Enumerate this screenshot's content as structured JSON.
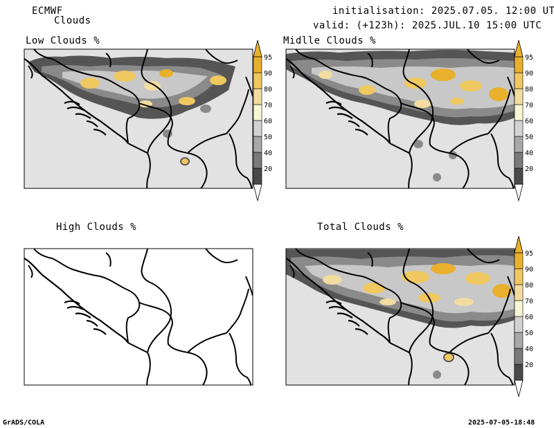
{
  "header": {
    "model": "ECMWF",
    "product": "Clouds",
    "init": "initialisation: 2025.07.05. 12:00 UTC",
    "valid": "valid: (+123h): 2025.JUL.10 15:00 UTC"
  },
  "panels": [
    {
      "title": "Low Clouds %",
      "cloud_field": "low"
    },
    {
      "title": "Midlle Clouds %",
      "cloud_field": "middle"
    },
    {
      "title": "High Clouds %",
      "cloud_field": "none"
    },
    {
      "title": "Total Clouds %",
      "cloud_field": "total"
    }
  ],
  "colorbar": {
    "levels": [
      "20",
      "40",
      "50",
      "60",
      "70",
      "80",
      "90",
      "95"
    ],
    "colors": [
      "#4a4a4a",
      "#7a7a7a",
      "#a8a8a8",
      "#d2d2d2",
      "#f7f7d4",
      "#f2dca0",
      "#f0c860",
      "#e8b02c"
    ]
  },
  "map_background": "#e2e2e2",
  "footer": {
    "left": "GrADS/COLA",
    "right": "2025-07-05-18:48"
  }
}
